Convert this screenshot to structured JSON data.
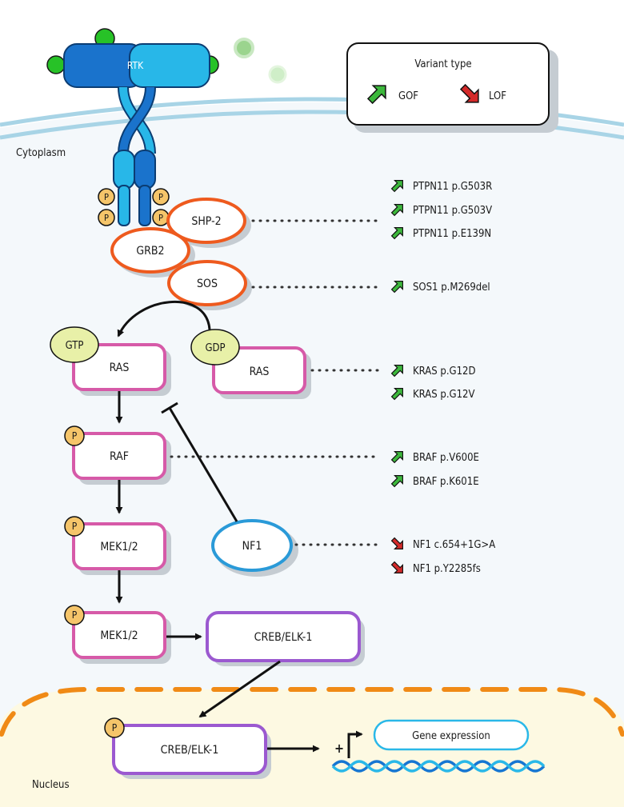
{
  "receptor": {
    "label": "RTK"
  },
  "compartments": {
    "cytoplasm": "Cytoplasm",
    "nucleus": "Nucleus"
  },
  "legend": {
    "title": "Variant type",
    "gof": "GOF",
    "lof": "LOF"
  },
  "phospho": "P",
  "nodes": {
    "shp2": "SHP-2",
    "grb2": "GRB2",
    "sos": "SOS",
    "gtp": "GTP",
    "gdp": "GDP",
    "ras_active": "RAS",
    "ras_inactive": "RAS",
    "raf": "RAF",
    "mek1": "MEK1/2",
    "mek2": "MEK1/2",
    "nf1": "NF1",
    "creb_cyto": "CREB/ELK-1",
    "creb_nuc": "CREB/ELK-1",
    "gene_expression": "Gene expression",
    "plus": "+"
  },
  "mutations": {
    "ptpn11": [
      "PTPN11 p.G503R",
      "PTPN11 p.G503V",
      "PTPN11 p.E139N"
    ],
    "sos1": [
      "SOS1 p.M269del"
    ],
    "kras": [
      "KRAS p.G12D",
      "KRAS p.G12V"
    ],
    "braf": [
      "BRAF p.V600E",
      "BRAF p.K601E"
    ],
    "nf1": [
      "NF1 c.654+1G>A",
      "NF1 p.Y2285fs"
    ]
  },
  "colors": {
    "gof": "#3cb83c",
    "lof": "#d42a2a",
    "orange": "#ee5a1e",
    "pink": "#d65aa8",
    "purple": "#9b59d0",
    "blue": "#2a9ad8",
    "membrane": "#a8d4e6",
    "nucleus_fill": "#fdf9e2",
    "nucleus_border": "#f08a16",
    "phospho": "#f5c56a",
    "gtp_fill": "#e8f0a8"
  }
}
